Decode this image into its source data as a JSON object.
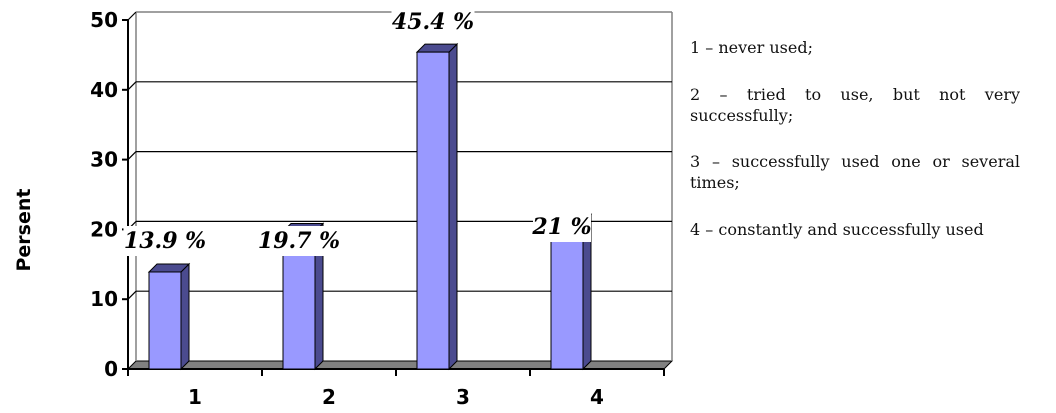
{
  "chart_data": {
    "type": "bar",
    "categories": [
      "1",
      "2",
      "3",
      "4"
    ],
    "values": [
      13.9,
      19.7,
      45.4,
      21
    ],
    "data_labels": [
      "13.9 %",
      "19.7 %",
      "45.4 %",
      "21 %"
    ],
    "title": "",
    "xlabel": "",
    "ylabel": "Persent",
    "ylim": [
      0,
      50
    ],
    "yticks": [
      "0",
      "10",
      "20",
      "30",
      "40",
      "50"
    ],
    "grid": true,
    "bar_color": "#9999ff",
    "bar_side_color": "#4b4b8f",
    "floor_color": "#808080"
  },
  "legend": {
    "items": [
      "1 – never used;",
      "2 – tried to use, but not very successfully;",
      "3 – successfully used one or several times;",
      "4 – constantly and successfully used"
    ]
  }
}
